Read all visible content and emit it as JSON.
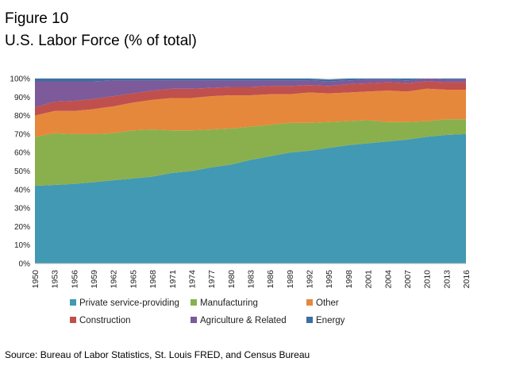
{
  "figure": {
    "label": "Figure 10",
    "title": "U.S. Labor Force (% of total)",
    "source": "Source: Bureau of Labor Statistics, St. Louis FRED, and Census Bureau"
  },
  "chart_data": {
    "type": "area",
    "stacked": true,
    "x": [
      1950,
      1953,
      1956,
      1959,
      1962,
      1965,
      1968,
      1971,
      1974,
      1977,
      1980,
      1983,
      1986,
      1989,
      1992,
      1995,
      1998,
      2001,
      2004,
      2007,
      2010,
      2013,
      2016
    ],
    "x_tick_labels": [
      "1950",
      "1953",
      "1956",
      "1959",
      "1962",
      "1965",
      "1968",
      "1971",
      "1974",
      "1977",
      "1980",
      "1983",
      "1986",
      "1989",
      "1992",
      "1995",
      "1998",
      "2001",
      "2004",
      "2007",
      "2010",
      "2013",
      "2016"
    ],
    "y_tick_labels": [
      "0%",
      "10%",
      "20%",
      "30%",
      "40%",
      "50%",
      "60%",
      "70%",
      "80%",
      "90%",
      "100%"
    ],
    "ylim": [
      0,
      100
    ],
    "grid": "horizontal",
    "legend_position": "bottom",
    "series": [
      {
        "name": "Private service-providing",
        "color": "#4199b3",
        "values": [
          42,
          42.5,
          43,
          44,
          45,
          46,
          47,
          49,
          50,
          52,
          53.5,
          56,
          58,
          60,
          61,
          62.5,
          64,
          65,
          66,
          67,
          68.5,
          69.5,
          70
        ]
      },
      {
        "name": "Manufacturing",
        "color": "#8ab04d",
        "values": [
          26.5,
          28,
          27,
          26,
          25.5,
          26,
          25.5,
          23,
          22,
          20.5,
          19.5,
          18,
          17,
          16,
          15,
          14,
          13,
          12.5,
          10.5,
          9.5,
          8.5,
          8.5,
          8
        ]
      },
      {
        "name": "Other",
        "color": "#e6883c",
        "values": [
          11.5,
          12,
          12.5,
          13.5,
          14.5,
          15,
          16,
          17.5,
          17.5,
          18,
          18,
          17,
          16.5,
          15.5,
          16.5,
          15.5,
          15.5,
          15.5,
          17,
          16.5,
          17.5,
          16,
          16
        ]
      },
      {
        "name": "Construction",
        "color": "#c0504d",
        "values": [
          4.5,
          5,
          5.5,
          5.5,
          5.5,
          5,
          5,
          5,
          5,
          4.5,
          4.5,
          4.5,
          4.5,
          4.5,
          4,
          4,
          4.5,
          4.5,
          4.5,
          4.5,
          4,
          4,
          4
        ]
      },
      {
        "name": "Agriculture & Related",
        "color": "#7d5a9a",
        "values": [
          14,
          11,
          10.5,
          9.5,
          8.5,
          7,
          5.5,
          4.5,
          4.5,
          4,
          3.5,
          3.5,
          3,
          3,
          2.5,
          2.5,
          2,
          2,
          1.5,
          1.5,
          1.5,
          1.5,
          1.5
        ]
      },
      {
        "name": "Energy",
        "color": "#3b6fa3",
        "values": [
          1.5,
          1.5,
          1.5,
          1.5,
          1,
          1,
          1,
          1,
          1,
          1,
          1,
          1,
          1,
          1,
          1,
          1,
          1,
          0.5,
          0.5,
          1,
          0,
          0.5,
          0.5
        ]
      }
    ]
  }
}
